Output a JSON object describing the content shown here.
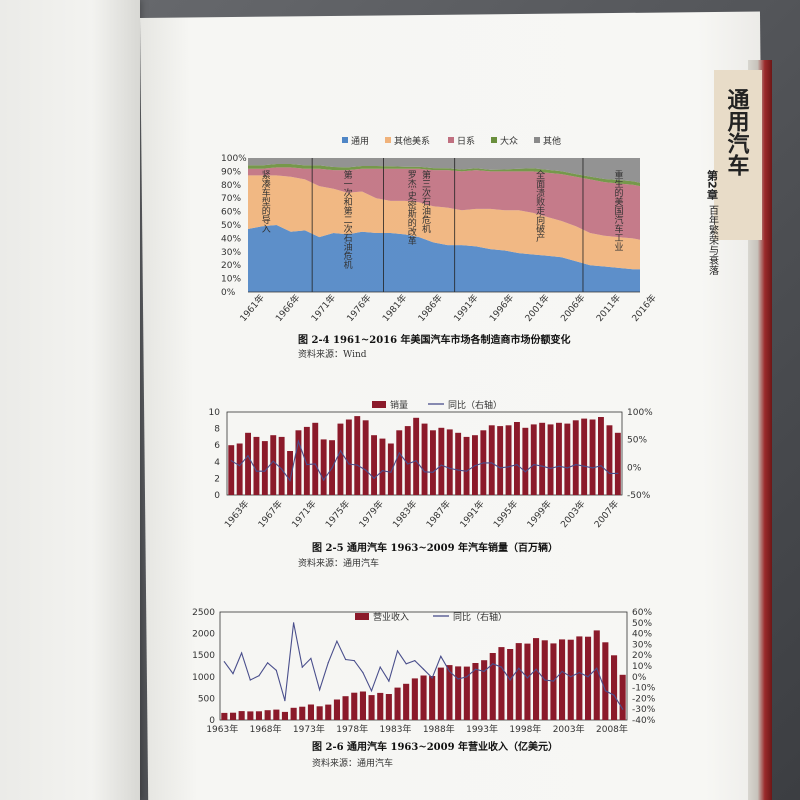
{
  "chapter": {
    "title_vertical": "通用汽车",
    "chapter_label": "第2章",
    "chapter_subtitle": "百年繁荣与衰落"
  },
  "colors": {
    "gm": "#4f86c6",
    "other_us": "#f0b27a",
    "japanese": "#c07080",
    "vw": "#6a8f3c",
    "other": "#8a8a8a",
    "bar": "#8b1a2a",
    "line": "#4a4f8c"
  },
  "chart_data": [
    {
      "id": "fig-2-4",
      "type": "area",
      "caption": "图 2-4   1961~2016 年美国汽车市场各制造商市场份额变化",
      "source": "资料来源：Wind",
      "legend": [
        "通用",
        "其他美系",
        "日系",
        "大众",
        "其他"
      ],
      "x_ticks": [
        "1961年",
        "1966年",
        "1971年",
        "1976年",
        "1981年",
        "1986年",
        "1991年",
        "1996年",
        "2001年",
        "2006年",
        "2011年",
        "2016年"
      ],
      "y_ticks": [
        "100%",
        "90%",
        "80%",
        "70%",
        "60%",
        "50%",
        "40%",
        "30%",
        "20%",
        "10%",
        "0%"
      ],
      "ylim": [
        0,
        100
      ],
      "x": [
        1961,
        1963,
        1965,
        1967,
        1969,
        1971,
        1973,
        1975,
        1977,
        1979,
        1981,
        1983,
        1985,
        1987,
        1989,
        1991,
        1993,
        1995,
        1997,
        1999,
        2001,
        2003,
        2005,
        2007,
        2009,
        2011,
        2013,
        2015,
        2016
      ],
      "series": [
        {
          "name": "通用",
          "values": [
            47,
            49,
            50,
            45,
            46,
            41,
            44,
            43,
            45,
            44,
            44,
            43,
            41,
            37,
            35,
            35,
            34,
            32,
            31,
            29,
            28,
            27,
            26,
            23,
            20,
            19,
            18,
            17,
            17
          ]
        },
        {
          "name": "其他美系",
          "values": [
            40,
            38,
            37,
            41,
            38,
            38,
            33,
            31,
            30,
            26,
            24,
            25,
            26,
            27,
            28,
            26,
            28,
            30,
            30,
            32,
            31,
            29,
            27,
            26,
            24,
            23,
            23,
            23,
            22
          ]
        },
        {
          "name": "日系",
          "values": [
            5,
            5,
            6,
            7,
            8,
            13,
            14,
            17,
            17,
            22,
            24,
            24,
            25,
            27,
            28,
            29,
            29,
            28,
            29,
            29,
            31,
            33,
            35,
            37,
            40,
            40,
            40,
            40,
            40
          ]
        },
        {
          "name": "大众",
          "values": [
            2.5,
            2.5,
            2.5,
            2.5,
            2.5,
            2.5,
            2.3,
            2,
            2,
            2,
            1.8,
            1.5,
            1.5,
            1.5,
            1.4,
            1.4,
            1.3,
            1.3,
            1.4,
            2,
            2.3,
            2.3,
            2.1,
            2,
            2.1,
            2.3,
            2.6,
            2.6,
            2.6
          ]
        },
        {
          "name": "其他",
          "values": [
            5.5,
            5.5,
            4.5,
            4.5,
            5.5,
            5.5,
            6.7,
            7,
            6,
            6,
            6.2,
            6.5,
            6.5,
            7.5,
            7.6,
            8.6,
            7.7,
            8.7,
            8.6,
            8,
            7.7,
            8.7,
            9.9,
            12,
            13.9,
            15.7,
            16.4,
            17.4,
            18.4
          ]
        }
      ],
      "annotations": [
        {
          "text": "紧凑车型的导入",
          "x": 1962.5
        },
        {
          "text": "第一次和第二次石油危机",
          "x": 1974
        },
        {
          "text": "罗杰·史密斯的改革",
          "x": 1983
        },
        {
          "text": "第三次石油危机",
          "x": 1985
        },
        {
          "text": "全面溃败走向破产",
          "x": 2001
        },
        {
          "text": "重生的美国汽车工业",
          "x": 2012
        }
      ],
      "dividers": [
        1970,
        1980,
        1990,
        2008
      ]
    },
    {
      "id": "fig-2-5",
      "type": "bar",
      "caption": "图 2-5   通用汽车 1963~2009 年汽车销量（百万辆）",
      "source": "资料来源：通用汽车",
      "legend": [
        "销量",
        "同比（右轴）"
      ],
      "x_ticks": [
        "1963年",
        "1967年",
        "1971年",
        "1975年",
        "1979年",
        "1983年",
        "1987年",
        "1991年",
        "1995年",
        "1999年",
        "2003年",
        "2007年"
      ],
      "y_ticks": [
        "10",
        "8",
        "6",
        "4",
        "2",
        "0"
      ],
      "y2_ticks": [
        "100%",
        "50%",
        "0%",
        "-50%"
      ],
      "ylim": [
        0,
        10
      ],
      "y2lim": [
        -50,
        100
      ],
      "x": [
        1963,
        1964,
        1965,
        1966,
        1967,
        1968,
        1969,
        1970,
        1971,
        1972,
        1973,
        1974,
        1975,
        1976,
        1977,
        1978,
        1979,
        1980,
        1981,
        1982,
        1983,
        1984,
        1985,
        1986,
        1987,
        1988,
        1989,
        1990,
        1991,
        1992,
        1993,
        1994,
        1995,
        1996,
        1997,
        1998,
        1999,
        2000,
        2001,
        2002,
        2003,
        2004,
        2005,
        2006,
        2007,
        2008,
        2009
      ],
      "values": [
        6.0,
        6.2,
        7.5,
        7.0,
        6.5,
        7.2,
        7.0,
        5.3,
        7.8,
        8.2,
        8.7,
        6.7,
        6.6,
        8.6,
        9.1,
        9.5,
        9.0,
        7.2,
        6.8,
        6.2,
        7.8,
        8.3,
        9.3,
        8.6,
        7.8,
        8.1,
        7.9,
        7.5,
        7.0,
        7.2,
        7.8,
        8.4,
        8.3,
        8.4,
        8.8,
        8.1,
        8.5,
        8.7,
        8.5,
        8.7,
        8.6,
        9.0,
        9.2,
        9.1,
        9.4,
        8.4,
        7.5
      ],
      "yoy": [
        12,
        3,
        21,
        -7,
        -7,
        11,
        -3,
        -24,
        47,
        5,
        6,
        -23,
        -1,
        30,
        6,
        4,
        -5,
        -20,
        -6,
        -9,
        26,
        6,
        12,
        -8,
        -9,
        4,
        -2,
        -5,
        -7,
        3,
        8,
        8,
        -1,
        1,
        5,
        -8,
        5,
        2,
        -2,
        2,
        -1,
        5,
        2,
        -1,
        3,
        -11,
        -11
      ]
    },
    {
      "id": "fig-2-6",
      "type": "bar",
      "caption": "图 2-6   通用汽车 1963~2009 年营业收入（亿美元）",
      "source": "资料来源：通用汽车",
      "legend": [
        "营业收入",
        "同比（右轴）"
      ],
      "x_ticks": [
        "1963年",
        "1968年",
        "1973年",
        "1978年",
        "1983年",
        "1988年",
        "1993年",
        "1998年",
        "2003年",
        "2008年"
      ],
      "y_ticks": [
        "2500",
        "2000",
        "1500",
        "1000",
        "500",
        "0"
      ],
      "y2_ticks": [
        "60%",
        "50%",
        "40%",
        "30%",
        "20%",
        "10%",
        "0%",
        "-10%",
        "-20%",
        "-30%",
        "-40%"
      ],
      "ylim": [
        0,
        2500
      ],
      "y2lim": [
        -40,
        60
      ],
      "x": [
        1963,
        1964,
        1965,
        1966,
        1967,
        1968,
        1969,
        1970,
        1971,
        1972,
        1973,
        1974,
        1975,
        1976,
        1977,
        1978,
        1979,
        1980,
        1981,
        1982,
        1983,
        1984,
        1985,
        1986,
        1987,
        1988,
        1989,
        1990,
        1991,
        1992,
        1993,
        1994,
        1995,
        1996,
        1997,
        1998,
        1999,
        2000,
        2001,
        2002,
        2003,
        2004,
        2005,
        2006,
        2007,
        2008,
        2009
      ],
      "values": [
        165,
        170,
        207,
        200,
        201,
        228,
        241,
        188,
        282,
        307,
        359,
        316,
        357,
        474,
        550,
        633,
        660,
        577,
        628,
        602,
        749,
        839,
        963,
        1030,
        1019,
        1212,
        1270,
        1241,
        1235,
        1320,
        1385,
        1551,
        1687,
        1643,
        1781,
        1768,
        1896,
        1846,
        1772,
        1865,
        1858,
        1935,
        1929,
        2074,
        1799,
        1497,
        1046
      ],
      "yoy": [
        14,
        3,
        22,
        -3,
        1,
        13,
        6,
        -22,
        50,
        9,
        17,
        -12,
        13,
        33,
        16,
        15,
        4,
        -13,
        9,
        -4,
        24,
        12,
        15,
        7,
        -1,
        19,
        5,
        -2,
        0,
        7,
        5,
        12,
        9,
        -3,
        8,
        -1,
        7,
        -3,
        -4,
        5,
        0,
        4,
        0,
        8,
        -13,
        -17,
        -30
      ]
    }
  ]
}
